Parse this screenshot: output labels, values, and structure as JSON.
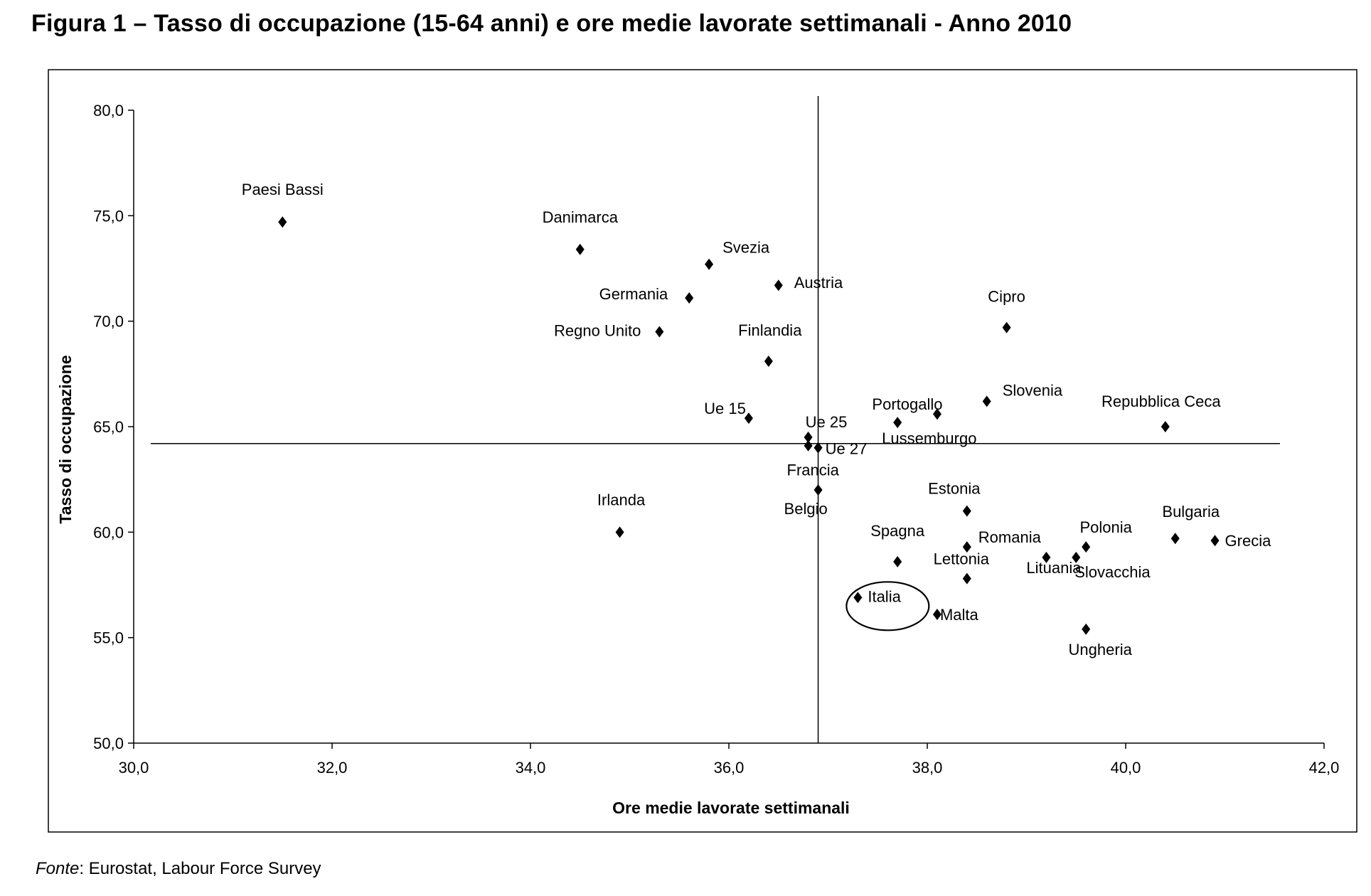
{
  "figure_title": "Figura 1 – Tasso di occupazione (15-64 anni) e ore medie lavorate settimanali - Anno 2010",
  "source": {
    "label": "Fonte",
    "text": ": Eurostat, Labour Force Survey"
  },
  "colors": {
    "marker": "#000000",
    "axis": "#000000",
    "frame": "#000000"
  },
  "chart_data": {
    "type": "scatter",
    "xlabel": "Ore medie lavorate settimanali",
    "ylabel": "Tasso di occupazione",
    "xlim": [
      30,
      42
    ],
    "ylim": [
      50,
      80
    ],
    "x_ticks": [
      "30,0",
      "32,0",
      "34,0",
      "36,0",
      "38,0",
      "40,0",
      "42,0"
    ],
    "y_ticks": [
      "50,0",
      "55,0",
      "60,0",
      "65,0",
      "70,0",
      "75,0",
      "80,0"
    ],
    "reference_lines": {
      "x": 36.9,
      "y": 64.2
    },
    "highlighted": "Italia",
    "grid": false,
    "points": [
      {
        "name": "Paesi Bassi",
        "x": 31.5,
        "y": 74.7
      },
      {
        "name": "Danimarca",
        "x": 34.5,
        "y": 73.4
      },
      {
        "name": "Svezia",
        "x": 35.8,
        "y": 72.7
      },
      {
        "name": "Germania",
        "x": 35.6,
        "y": 71.1
      },
      {
        "name": "Austria",
        "x": 36.5,
        "y": 71.7
      },
      {
        "name": "Regno Unito",
        "x": 35.3,
        "y": 69.5
      },
      {
        "name": "Finlandia",
        "x": 36.4,
        "y": 68.1
      },
      {
        "name": "Ue 15",
        "x": 36.2,
        "y": 65.4
      },
      {
        "name": "Ue 25",
        "x": 36.8,
        "y": 64.5
      },
      {
        "name": "Ue 27",
        "x": 36.8,
        "y": 64.1
      },
      {
        "name": "Francia",
        "x": 36.9,
        "y": 64.0
      },
      {
        "name": "Belgio",
        "x": 36.9,
        "y": 62.0
      },
      {
        "name": "Irlanda",
        "x": 34.9,
        "y": 60.0
      },
      {
        "name": "Cipro",
        "x": 38.8,
        "y": 69.7
      },
      {
        "name": "Portogallo",
        "x": 38.1,
        "y": 65.6
      },
      {
        "name": "Slovenia",
        "x": 38.6,
        "y": 66.2
      },
      {
        "name": "Lussemburgo",
        "x": 37.7,
        "y": 65.2
      },
      {
        "name": "Repubblica Ceca",
        "x": 40.4,
        "y": 65.0
      },
      {
        "name": "Estonia",
        "x": 38.4,
        "y": 61.0
      },
      {
        "name": "Spagna",
        "x": 37.7,
        "y": 58.6
      },
      {
        "name": "Romania",
        "x": 38.4,
        "y": 59.3
      },
      {
        "name": "Lettonia",
        "x": 38.4,
        "y": 57.8
      },
      {
        "name": "Polonia",
        "x": 39.6,
        "y": 59.3
      },
      {
        "name": "Slovacchia",
        "x": 39.5,
        "y": 58.8
      },
      {
        "name": "Lituania",
        "x": 39.2,
        "y": 58.8
      },
      {
        "name": "Bulgaria",
        "x": 40.5,
        "y": 59.7
      },
      {
        "name": "Grecia",
        "x": 40.9,
        "y": 59.6
      },
      {
        "name": "Italia",
        "x": 37.3,
        "y": 56.9
      },
      {
        "name": "Malta",
        "x": 38.1,
        "y": 56.1
      },
      {
        "name": "Ungheria",
        "x": 39.6,
        "y": 55.4
      }
    ]
  }
}
